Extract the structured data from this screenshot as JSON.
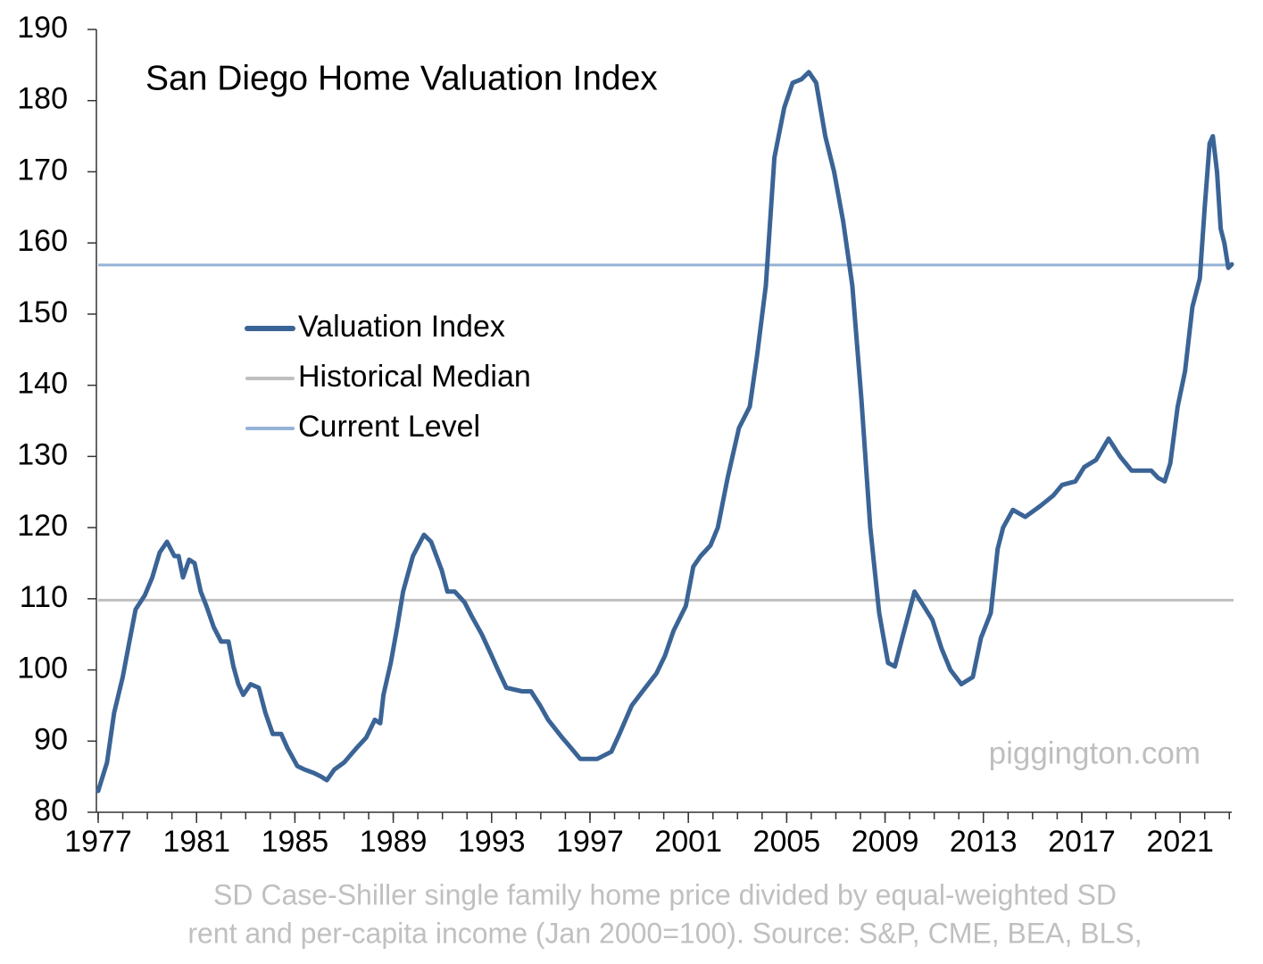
{
  "chart_data": {
    "type": "line",
    "title": "San Diego Home Valuation Index",
    "watermark": "piggington.com",
    "footnote": [
      "SD Case-Shiller single family home price divided by equal-weighted SD",
      "rent and per-capita income (Jan 2000=100). Source: S&P, CME, BEA, BLS,"
    ],
    "x": [
      1977.0,
      1977.36,
      1977.65,
      1978.0,
      1978.27,
      1978.52,
      1978.9,
      1979.2,
      1979.5,
      1979.8,
      1980.1,
      1980.27,
      1980.45,
      1980.7,
      1980.92,
      1981.17,
      1981.4,
      1981.7,
      1982.0,
      1982.3,
      1982.5,
      1982.7,
      1982.9,
      1983.2,
      1983.53,
      1983.8,
      1984.1,
      1984.44,
      1984.7,
      1985.1,
      1985.4,
      1985.78,
      1986.07,
      1986.3,
      1986.6,
      1987.0,
      1987.5,
      1987.9,
      1988.25,
      1988.47,
      1988.6,
      1988.9,
      1989.16,
      1989.4,
      1989.8,
      1990.25,
      1990.54,
      1990.97,
      1991.2,
      1991.5,
      1991.9,
      1992.2,
      1992.6,
      1993.0,
      1993.26,
      1993.6,
      1994.24,
      1994.6,
      1994.97,
      1995.3,
      1995.87,
      1996.24,
      1996.6,
      1997.3,
      1997.87,
      1998.2,
      1998.7,
      1999.14,
      1999.7,
      2000.05,
      2000.4,
      2000.9,
      2001.2,
      2001.5,
      2001.9,
      2002.2,
      2002.6,
      2003.06,
      2003.5,
      2003.79,
      2004.15,
      2004.5,
      2004.9,
      2005.24,
      2005.6,
      2005.9,
      2006.2,
      2006.57,
      2006.93,
      2007.3,
      2007.67,
      2008.04,
      2008.4,
      2008.76,
      2009.12,
      2009.4,
      2009.74,
      2010.2,
      2010.57,
      2010.93,
      2011.3,
      2011.66,
      2012.1,
      2012.57,
      2012.9,
      2013.3,
      2013.58,
      2013.8,
      2014.2,
      2014.7,
      2015.3,
      2015.84,
      2016.2,
      2016.74,
      2017.1,
      2017.58,
      2018.09,
      2018.56,
      2019.03,
      2019.4,
      2019.83,
      2020.1,
      2020.37,
      2020.6,
      2020.9,
      2021.2,
      2021.5,
      2021.8,
      2022.0,
      2022.2,
      2022.33,
      2022.5,
      2022.65,
      2022.8,
      2022.96,
      2023.1
    ],
    "series": [
      {
        "name": "Valuation Index",
        "color": "#3b6496",
        "values": [
          83,
          87,
          94,
          99,
          104,
          108.5,
          110.5,
          113,
          116.5,
          118,
          116,
          116,
          113,
          115.5,
          115,
          111,
          109,
          106,
          104,
          104,
          100.5,
          98,
          96.5,
          98,
          97.5,
          94,
          91,
          91,
          89,
          86.5,
          86,
          85.5,
          85,
          84.5,
          86,
          87,
          89,
          90.5,
          93,
          92.5,
          96.5,
          101,
          106,
          111,
          116,
          119,
          118,
          114,
          111,
          111,
          109.5,
          107.5,
          105,
          102,
          100,
          97.5,
          97,
          97,
          95,
          93,
          90.5,
          89,
          87.5,
          87.5,
          88.5,
          91,
          95,
          97,
          99.5,
          102,
          105.5,
          109,
          114.5,
          116,
          117.5,
          120,
          127,
          134,
          137,
          144,
          154,
          172,
          179,
          182.5,
          183,
          184,
          182.5,
          175,
          170,
          163,
          154,
          138,
          120,
          108,
          101,
          100.5,
          105,
          111,
          109,
          107,
          103,
          100,
          98,
          99,
          104.5,
          108,
          117,
          120,
          122.5,
          121.5,
          123,
          124.5,
          126,
          126.5,
          128.5,
          129.5,
          132.5,
          130,
          128,
          128,
          128,
          127,
          126.5,
          129,
          137,
          142,
          151,
          155,
          165,
          174,
          175,
          170,
          162,
          160,
          156.5,
          157
        ]
      }
    ],
    "reference_lines": [
      {
        "name": "Historical Median",
        "color": "#bfbfbf",
        "value": 109.8
      },
      {
        "name": "Current Level",
        "color": "#95b3d7",
        "value": 156.9
      }
    ],
    "xlim": [
      1977,
      2023.1
    ],
    "xticks": [
      1977,
      1981,
      1985,
      1989,
      1993,
      1997,
      2001,
      2005,
      2009,
      2013,
      2017,
      2021
    ],
    "xminorticks": [
      1977,
      1978,
      1979,
      1980,
      1981,
      1982,
      1983,
      1984,
      1985,
      1986,
      1987,
      1988,
      1989,
      1990,
      1991,
      1992,
      1993,
      1994,
      1995,
      1996,
      1997,
      1998,
      1999,
      2000,
      2001,
      2002,
      2003,
      2004,
      2005,
      2006,
      2007,
      2008,
      2009,
      2010,
      2011,
      2012,
      2013,
      2014,
      2015,
      2016,
      2017,
      2018,
      2019,
      2020,
      2021,
      2022,
      2023
    ],
    "ylim": [
      80,
      190
    ],
    "yticks": [
      80,
      90,
      100,
      110,
      120,
      130,
      140,
      150,
      160,
      170,
      180,
      190
    ],
    "grid": false
  }
}
